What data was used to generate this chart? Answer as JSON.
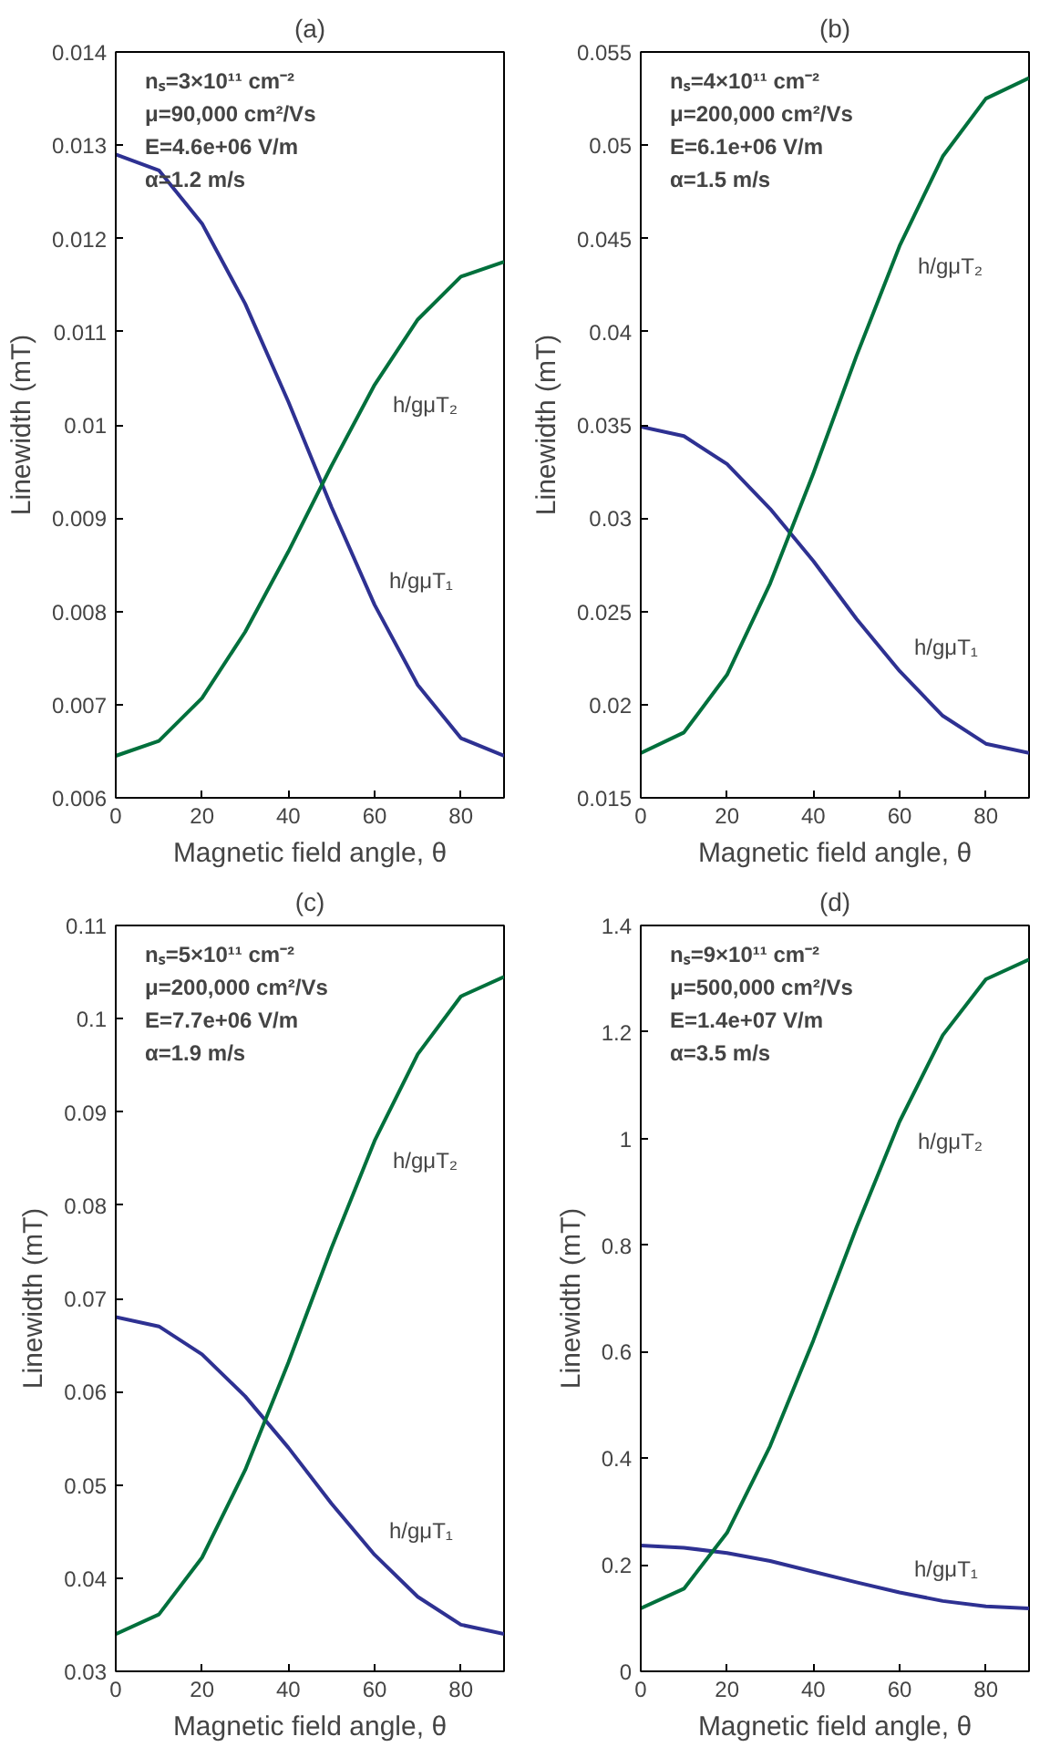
{
  "chart_data": [
    {
      "type": "line",
      "title": "(a)",
      "xlabel": "Magnetic field angle, θ",
      "ylabel": "Linewidth (mT)",
      "x": [
        0,
        10,
        20,
        30,
        40,
        50,
        60,
        70,
        80,
        90
      ],
      "xlim": [
        0,
        90
      ],
      "xticks": [
        0,
        20,
        40,
        60,
        80
      ],
      "ylim": [
        0.006,
        0.014
      ],
      "yticks": [
        0.006,
        0.007,
        0.008,
        0.009,
        0.01,
        0.011,
        0.012,
        0.013,
        0.014
      ],
      "grid": false,
      "series": [
        {
          "name": "h/gμT₁",
          "color": "#2e3192",
          "values": [
            0.0129,
            0.01273,
            0.01216,
            0.0113,
            0.01025,
            0.00912,
            0.00807,
            0.00721,
            0.00664,
            0.00645
          ]
        },
        {
          "name": "h/gμT₂",
          "color": "#00703c",
          "values": [
            0.00645,
            0.00661,
            0.00707,
            0.00778,
            0.00864,
            0.00956,
            0.01043,
            0.01113,
            0.01159,
            0.01175
          ]
        }
      ],
      "annotations": [
        "nₛ=3×10¹¹ cm⁻²",
        "μ=90,000 cm²/Vs",
        "E=4.6e+06 V/m",
        "α=1.2 m/s"
      ]
    },
    {
      "type": "line",
      "title": "(b)",
      "xlabel": "Magnetic field angle, θ",
      "ylabel": "Linewidth (mT)",
      "x": [
        0,
        10,
        20,
        30,
        40,
        50,
        60,
        70,
        80,
        90
      ],
      "xlim": [
        0,
        90
      ],
      "xticks": [
        0,
        20,
        40,
        60,
        80
      ],
      "ylim": [
        0.015,
        0.055
      ],
      "yticks": [
        0.015,
        0.02,
        0.025,
        0.03,
        0.035,
        0.04,
        0.045,
        0.05,
        0.055
      ],
      "grid": false,
      "series": [
        {
          "name": "h/gμT₁",
          "color": "#2e3192",
          "values": [
            0.0349,
            0.0344,
            0.0329,
            0.0305,
            0.0277,
            0.0246,
            0.0218,
            0.0194,
            0.0179,
            0.0174
          ]
        },
        {
          "name": "h/gμT₂",
          "color": "#00703c",
          "values": [
            0.0174,
            0.0185,
            0.0216,
            0.0265,
            0.0324,
            0.0387,
            0.0446,
            0.0494,
            0.0525,
            0.0536
          ]
        }
      ],
      "annotations": [
        "nₛ=4×10¹¹ cm⁻²",
        "μ=200,000 cm²/Vs",
        "E=6.1e+06 V/m",
        "α=1.5 m/s"
      ]
    },
    {
      "type": "line",
      "title": "(c)",
      "xlabel": "Magnetic field angle, θ",
      "ylabel": "Linewidth (mT)",
      "x": [
        0,
        10,
        20,
        30,
        40,
        50,
        60,
        70,
        80,
        90
      ],
      "xlim": [
        0,
        90
      ],
      "xticks": [
        0,
        20,
        40,
        60,
        80
      ],
      "ylim": [
        0.03,
        0.11
      ],
      "yticks": [
        0.03,
        0.04,
        0.05,
        0.06,
        0.07,
        0.08,
        0.09,
        0.1,
        0.11
      ],
      "grid": false,
      "series": [
        {
          "name": "h/gμT₁",
          "color": "#2e3192",
          "values": [
            0.068,
            0.067,
            0.064,
            0.0595,
            0.054,
            0.048,
            0.0425,
            0.038,
            0.035,
            0.034
          ]
        },
        {
          "name": "h/gμT₂",
          "color": "#00703c",
          "values": [
            0.034,
            0.0361,
            0.0422,
            0.0516,
            0.0631,
            0.0754,
            0.0869,
            0.0962,
            0.1024,
            0.1045
          ]
        }
      ],
      "annotations": [
        "nₛ=5×10¹¹ cm⁻²",
        "μ=200,000 cm²/Vs",
        "E=7.7e+06 V/m",
        "α=1.9 m/s"
      ]
    },
    {
      "type": "line",
      "title": "(d)",
      "xlabel": "Magnetic field angle, θ",
      "ylabel": "Linewidth (mT)",
      "x": [
        0,
        10,
        20,
        30,
        40,
        50,
        60,
        70,
        80,
        90
      ],
      "xlim": [
        0,
        90
      ],
      "xticks": [
        0,
        20,
        40,
        60,
        80
      ],
      "ylim": [
        0,
        1.4
      ],
      "yticks": [
        0,
        0.2,
        0.4,
        0.6,
        0.8,
        1,
        1.2,
        1.4
      ],
      "grid": false,
      "series": [
        {
          "name": "h/gμT₁",
          "color": "#2e3192",
          "values": [
            0.236,
            0.232,
            0.222,
            0.207,
            0.187,
            0.167,
            0.148,
            0.132,
            0.122,
            0.118
          ]
        },
        {
          "name": "h/gμT₂",
          "color": "#00703c",
          "values": [
            0.118,
            0.155,
            0.26,
            0.423,
            0.621,
            0.833,
            1.032,
            1.194,
            1.299,
            1.336
          ]
        }
      ],
      "annotations": [
        "nₛ=9×10¹¹ cm⁻²",
        "μ=500,000 cm²/Vs",
        "E=1.4e+07 V/m",
        "α=3.5 m/s"
      ]
    }
  ]
}
